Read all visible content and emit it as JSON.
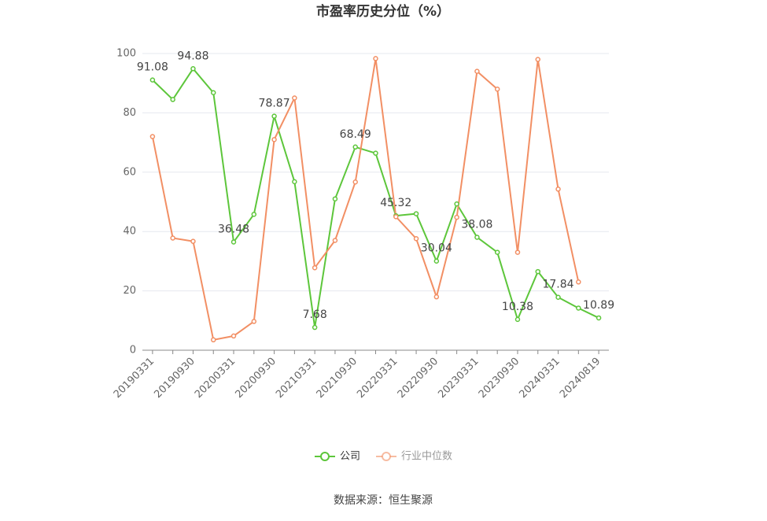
{
  "chart_data": {
    "type": "line",
    "title": "市盈率历史分位（%）",
    "source": "数据来源：恒生聚源",
    "categories": [
      "20190331",
      null,
      "20190930",
      null,
      "20200331",
      null,
      "20200930",
      null,
      "20210331",
      null,
      "20210930",
      null,
      "20220331",
      null,
      "20220930",
      null,
      "20230331",
      null,
      "20230930",
      null,
      "20240331",
      null,
      "20240819"
    ],
    "series": [
      {
        "name": "公司",
        "color": "#5dc63b",
        "values": [
          91.08,
          84.5,
          94.88,
          86.8,
          36.48,
          45.8,
          78.87,
          56.8,
          7.68,
          51,
          68.49,
          66.4,
          45.32,
          46,
          30.04,
          49.3,
          38.08,
          33,
          10.38,
          26.5,
          17.84,
          14.2,
          10.89
        ],
        "value_labels": [
          "91.08",
          null,
          "94.88",
          null,
          "36.48",
          null,
          "78.87",
          null,
          "7.68",
          null,
          "68.49",
          null,
          "45.32",
          null,
          "30.04",
          null,
          "38.08",
          null,
          "10.38",
          null,
          "17.84",
          null,
          "10.89"
        ]
      },
      {
        "name": "行业中位数",
        "color": "#f28f64",
        "values": [
          72,
          37.8,
          36.7,
          3.5,
          4.8,
          9.7,
          71,
          85,
          27.8,
          37,
          56.7,
          98.3,
          45,
          37.6,
          18,
          44.8,
          94,
          88,
          33,
          98,
          54.3,
          23,
          null
        ]
      }
    ],
    "ylim": [
      0,
      100
    ],
    "yticks": [
      0,
      20,
      40,
      60,
      80,
      100
    ],
    "grid": true,
    "legend": "bottom"
  }
}
